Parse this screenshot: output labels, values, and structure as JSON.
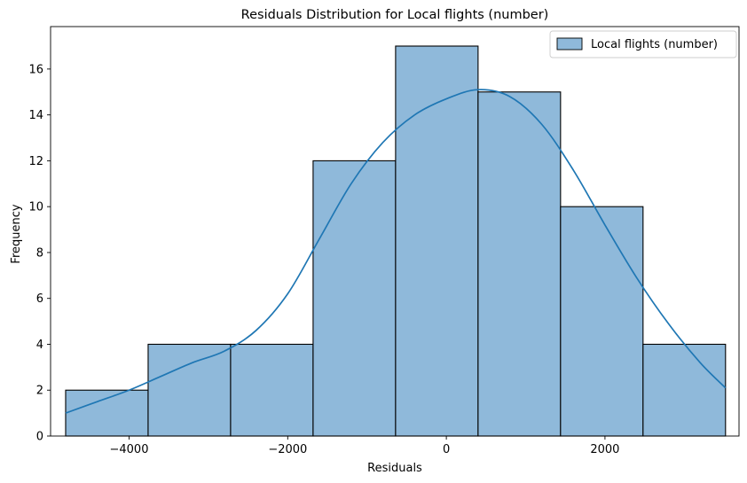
{
  "chart_data": {
    "type": "bar",
    "title": "Residuals Distribution for Local flights (number)",
    "xlabel": "Residuals",
    "ylabel": "Frequency",
    "xlim": [
      -4990,
      3690
    ],
    "ylim": [
      0,
      17.85
    ],
    "xticks": [
      -4000,
      -2000,
      0,
      2000
    ],
    "xtick_labels": [
      "−4000",
      "−2000",
      "0",
      "2000"
    ],
    "yticks": [
      0,
      2,
      4,
      6,
      8,
      10,
      12,
      14,
      16
    ],
    "bin_edges": [
      -4800,
      -3760,
      -2720,
      -1680,
      -640,
      400,
      1440,
      2480,
      3520
    ],
    "values": [
      2,
      4,
      4,
      12,
      17,
      15,
      10,
      4
    ],
    "bar_color": "#8fb9da",
    "edge_color": "#000000",
    "kde": {
      "color": "#1f77b4",
      "x": [
        -4800,
        -4400,
        -4000,
        -3600,
        -3200,
        -2800,
        -2400,
        -2000,
        -1600,
        -1200,
        -800,
        -400,
        0,
        400,
        800,
        1200,
        1600,
        2000,
        2400,
        2800,
        3200,
        3520
      ],
      "y": [
        1.0,
        1.5,
        2.0,
        2.6,
        3.2,
        3.7,
        4.6,
        6.2,
        8.6,
        11.0,
        12.8,
        14.0,
        14.7,
        15.1,
        14.8,
        13.6,
        11.6,
        9.2,
        6.9,
        4.9,
        3.2,
        2.1
      ]
    },
    "legend": {
      "label": "Local flights (number)",
      "position": "top-right"
    },
    "grid": false
  }
}
